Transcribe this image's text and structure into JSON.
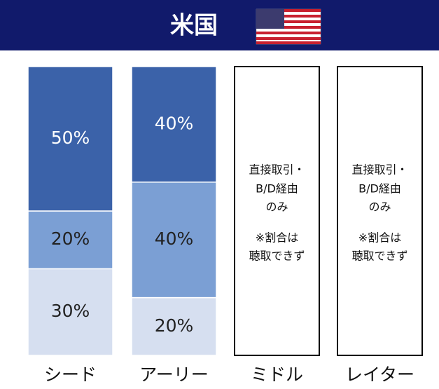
{
  "chart_data": {
    "type": "stacked_bar",
    "title": "米国",
    "categories": [
      "シード",
      "アーリー",
      "ミドル",
      "レイター"
    ],
    "series": [
      {
        "color": "#d6dff0",
        "label_color": "#222222",
        "values": [
          30,
          20,
          null,
          null
        ],
        "value_labels": [
          "30%",
          "20%",
          null,
          null
        ]
      },
      {
        "color": "#7b9fd4",
        "label_color": "#222222",
        "values": [
          20,
          40,
          null,
          null
        ],
        "value_labels": [
          "20%",
          "40%",
          null,
          null
        ]
      },
      {
        "color": "#3b62a9",
        "label_color": "#ffffff",
        "values": [
          50,
          40,
          null,
          null
        ],
        "value_labels": [
          "50%",
          "40%",
          null,
          null
        ]
      }
    ],
    "box_text": [
      null,
      null,
      [
        "直接取引・",
        "B/D経由",
        "のみ",
        "※割合は",
        "聴取できず"
      ],
      [
        "直接取引・",
        "B/D経由",
        "のみ",
        "※割合は",
        "聴取できず"
      ]
    ],
    "ylim": [
      0,
      100
    ]
  }
}
